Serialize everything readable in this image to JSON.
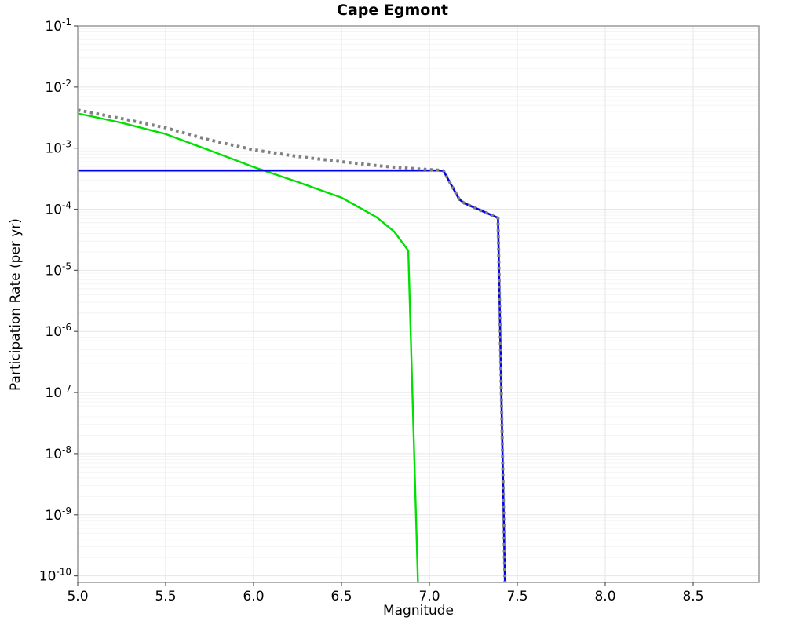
{
  "chart_data": {
    "type": "line",
    "title": "Cape Egmont",
    "xlabel": "Magnitude",
    "ylabel": "Participation Rate (per yr)",
    "xlim": [
      5.0,
      8.875
    ],
    "yscale": "log",
    "ylim": [
      7.8e-11,
      0.1
    ],
    "xticks": [
      5.0,
      5.5,
      6.0,
      6.5,
      7.0,
      7.5,
      8.0,
      8.5
    ],
    "ytick_exponents": [
      -1,
      -2,
      -3,
      -4,
      -5,
      -6,
      -7,
      -8,
      -9,
      -10
    ],
    "grid": {
      "major_color": "#e6e6e6",
      "minor_color": "#f4f4f4",
      "on": true
    },
    "plot_border_color": "#999999",
    "tick_color": "#555555",
    "legend": "none",
    "series": [
      {
        "name": "green-solid",
        "color": "#00e000",
        "style": "solid",
        "width": 2.4,
        "points": [
          [
            5.0,
            0.0037
          ],
          [
            5.25,
            0.0026
          ],
          [
            5.5,
            0.0017
          ],
          [
            5.75,
            0.00092
          ],
          [
            6.0,
            0.00049
          ],
          [
            6.25,
            0.00028
          ],
          [
            6.5,
            0.000155
          ],
          [
            6.7,
            7.4e-05
          ],
          [
            6.8,
            4.3e-05
          ],
          [
            6.88,
            2.1e-05
          ],
          [
            6.935,
            7e-11
          ]
        ]
      },
      {
        "name": "blue-solid",
        "color": "#0000ee",
        "style": "solid",
        "width": 2.6,
        "points": [
          [
            5.0,
            0.00043
          ],
          [
            7.05,
            0.00043
          ],
          [
            7.08,
            0.000425
          ],
          [
            7.17,
            0.000145
          ],
          [
            7.2,
            0.000125
          ],
          [
            7.39,
            7.2e-05
          ],
          [
            7.43,
            7e-11
          ]
        ]
      },
      {
        "name": "gray-dotted",
        "color": "#808080",
        "style": "dotted",
        "width": 4,
        "points": [
          [
            5.0,
            0.0042
          ],
          [
            5.25,
            0.00305
          ],
          [
            5.5,
            0.00215
          ],
          [
            5.75,
            0.00136
          ],
          [
            6.0,
            0.00094
          ],
          [
            6.25,
            0.00073
          ],
          [
            6.5,
            0.0006
          ],
          [
            6.75,
            0.0005
          ],
          [
            6.9,
            0.000465
          ],
          [
            7.0,
            0.000445
          ],
          [
            7.05,
            0.000435
          ],
          [
            7.08,
            0.000425
          ],
          [
            7.17,
            0.000145
          ],
          [
            7.2,
            0.000125
          ],
          [
            7.39,
            7.2e-05
          ],
          [
            7.43,
            7e-11
          ]
        ]
      }
    ]
  }
}
